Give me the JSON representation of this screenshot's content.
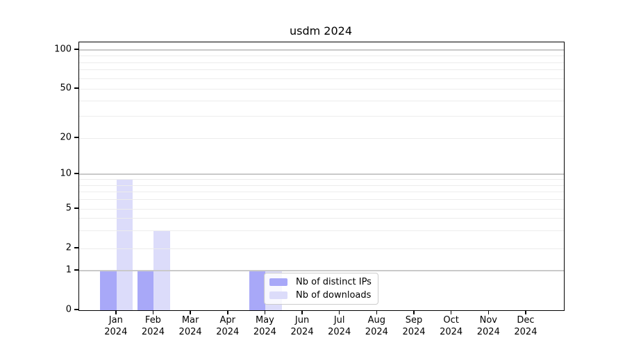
{
  "title": "usdm 2024",
  "chart_data": {
    "type": "bar",
    "title": "usdm 2024",
    "categories": [
      "Jan",
      "Feb",
      "Mar",
      "Apr",
      "May",
      "Jun",
      "Jul",
      "Aug",
      "Sep",
      "Oct",
      "Nov",
      "Dec"
    ],
    "category_year_line": "2024",
    "series": [
      {
        "name": "Nb of distinct IPs",
        "color": "#a8a8f8",
        "values": [
          1,
          1,
          0,
          0,
          1,
          0,
          0,
          0,
          0,
          0,
          0,
          0
        ]
      },
      {
        "name": "Nb of downloads",
        "color": "#dcdcfa",
        "values": [
          9,
          3,
          0,
          0,
          1,
          0,
          0,
          0,
          0,
          0,
          0,
          0
        ]
      }
    ],
    "yscale": "symlog",
    "yticks": [
      0,
      1,
      2,
      5,
      10,
      20,
      50,
      100
    ],
    "minor_gridline_values": [
      2,
      3,
      4,
      5,
      6,
      7,
      8,
      9,
      20,
      30,
      40,
      50,
      60,
      70,
      80,
      90
    ],
    "major_gridline_values": [
      1,
      10,
      100
    ],
    "ylim": [
      0,
      115
    ],
    "grid": true,
    "legend_position": "inside-bottom-center",
    "colors": {
      "axis": "#000000",
      "major_grid": "#c9c9c9",
      "minor_grid": "#ececec",
      "background": "#ffffff"
    }
  },
  "legend": {
    "items": [
      {
        "label": "Nb of distinct IPs",
        "color": "#a8a8f8"
      },
      {
        "label": "Nb of downloads",
        "color": "#dcdcfa"
      }
    ]
  }
}
